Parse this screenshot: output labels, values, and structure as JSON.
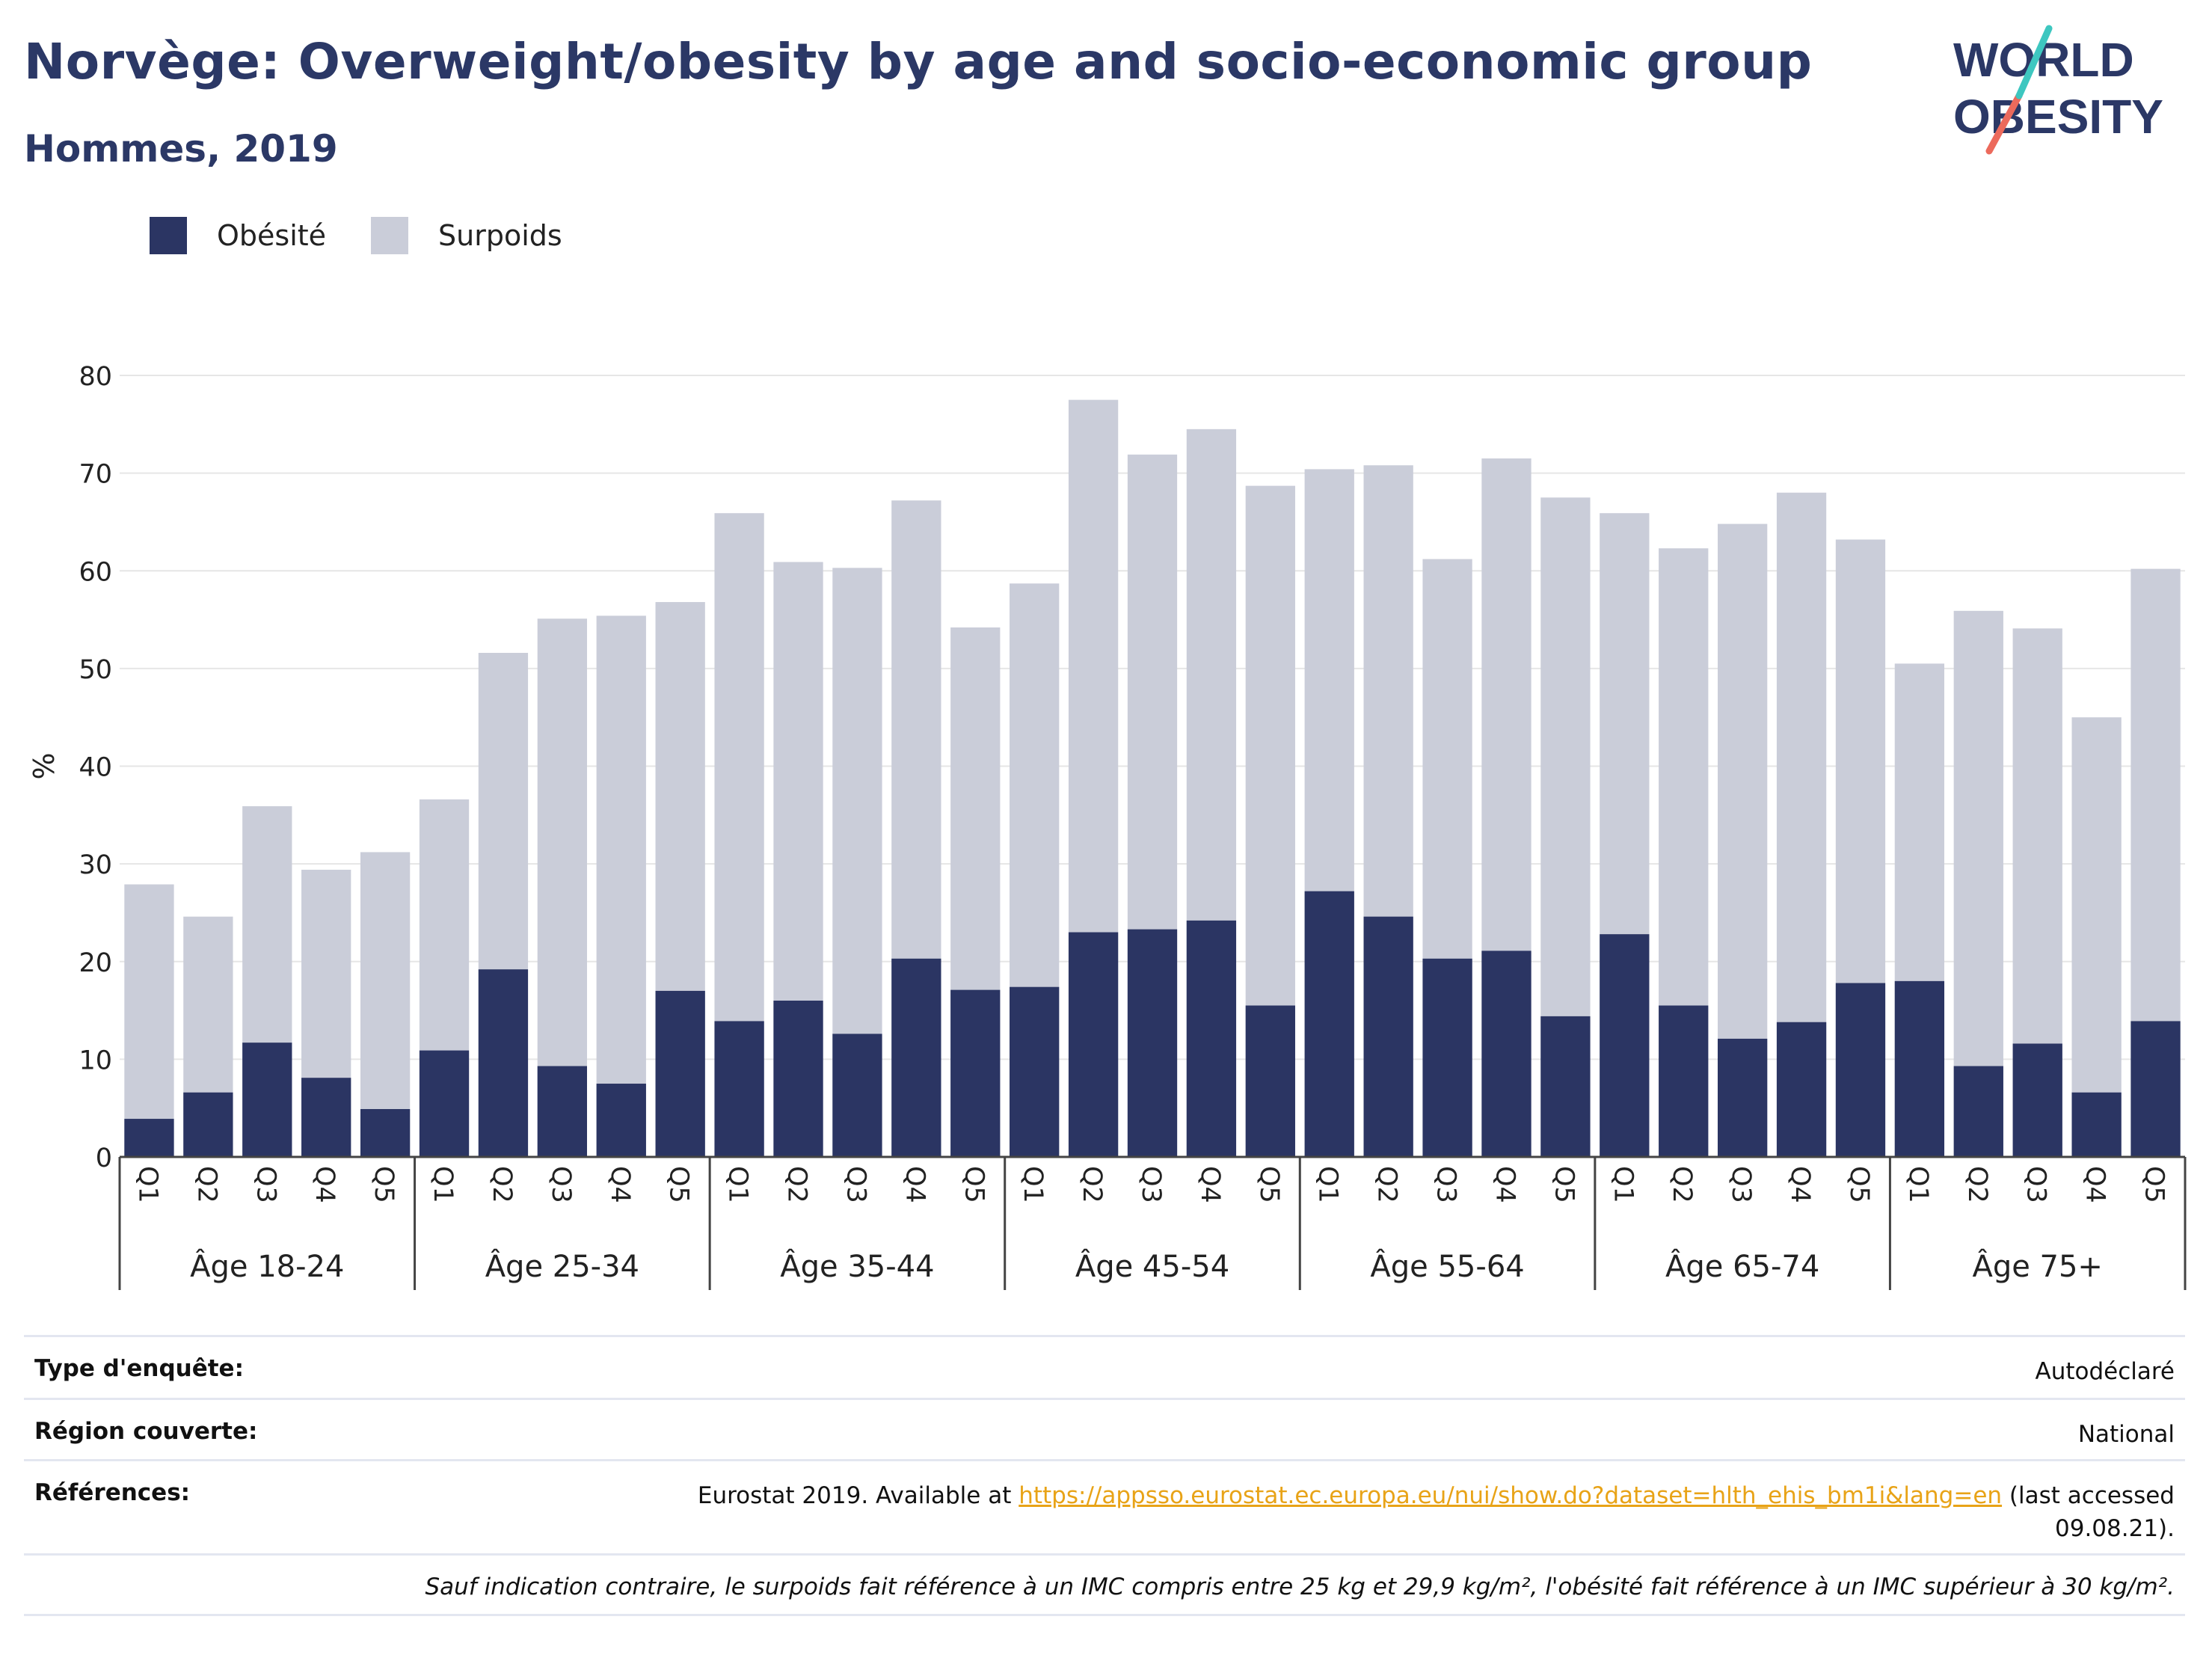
{
  "header": {
    "title": "Norvège: Overweight/obesity by age and socio-economic group",
    "subtitle": "Hommes, 2019"
  },
  "logo": {
    "line1": "WORLD",
    "line2": "OBESITY"
  },
  "colors": {
    "obesity": "#2b3563",
    "overweight": "#cacdd9",
    "accent_teal": "#3ec7c0",
    "accent_coral": "#ec6a5c"
  },
  "legend": [
    {
      "label": "Obésité",
      "color": "#2b3563"
    },
    {
      "label": "Surpoids",
      "color": "#cacdd9"
    }
  ],
  "chart_data": {
    "type": "bar",
    "stacked": true,
    "ylabel": "%",
    "ylim": [
      0,
      80
    ],
    "yticks": [
      0,
      10,
      20,
      30,
      40,
      50,
      60,
      70,
      80
    ],
    "grid": true,
    "legend_position": "top-left",
    "groups": [
      {
        "label": "Âge 18-24",
        "categories": [
          "Q1",
          "Q2",
          "Q3",
          "Q4",
          "Q5"
        ],
        "obesity": [
          3.9,
          6.6,
          11.7,
          8.1,
          4.9
        ],
        "overweight_total": [
          27.9,
          24.6,
          35.9,
          29.4,
          31.2
        ]
      },
      {
        "label": "Âge 25-34",
        "categories": [
          "Q1",
          "Q2",
          "Q3",
          "Q4",
          "Q5"
        ],
        "obesity": [
          10.9,
          19.2,
          9.3,
          7.5,
          17.0
        ],
        "overweight_total": [
          36.6,
          51.6,
          55.1,
          55.4,
          56.8
        ]
      },
      {
        "label": "Âge 35-44",
        "categories": [
          "Q1",
          "Q2",
          "Q3",
          "Q4",
          "Q5"
        ],
        "obesity": [
          13.9,
          16.0,
          12.6,
          20.3,
          17.1
        ],
        "overweight_total": [
          65.9,
          60.9,
          60.3,
          67.2,
          54.2
        ]
      },
      {
        "label": "Âge 45-54",
        "categories": [
          "Q1",
          "Q2",
          "Q3",
          "Q4",
          "Q5"
        ],
        "obesity": [
          17.4,
          23.0,
          23.3,
          24.2,
          15.5
        ],
        "overweight_total": [
          58.7,
          77.5,
          71.9,
          74.5,
          68.7
        ]
      },
      {
        "label": "Âge 55-64",
        "categories": [
          "Q1",
          "Q2",
          "Q3",
          "Q4",
          "Q5"
        ],
        "obesity": [
          27.2,
          24.6,
          20.3,
          21.1,
          14.4
        ],
        "overweight_total": [
          70.4,
          70.8,
          61.2,
          71.5,
          67.5
        ]
      },
      {
        "label": "Âge 65-74",
        "categories": [
          "Q1",
          "Q2",
          "Q3",
          "Q4",
          "Q5"
        ],
        "obesity": [
          22.8,
          15.5,
          12.1,
          13.8,
          17.8
        ],
        "overweight_total": [
          65.9,
          62.3,
          64.8,
          68.0,
          63.2
        ]
      },
      {
        "label": "Âge 75+",
        "categories": [
          "Q1",
          "Q2",
          "Q3",
          "Q4",
          "Q5"
        ],
        "obesity": [
          18.0,
          9.3,
          11.6,
          6.6,
          13.9
        ],
        "overweight_total": [
          50.5,
          55.9,
          54.1,
          45.0,
          60.2
        ]
      }
    ]
  },
  "meta": {
    "survey_type_label": "Type d'enquête:",
    "survey_type_value": "Autodéclaré",
    "region_label": "Région couverte:",
    "region_value": "National",
    "references_label": "Références:",
    "references_prefix": "Eurostat 2019. Available at ",
    "references_link": "https://appsso.eurostat.ec.europa.eu/nui/show.do?dataset=hlth_ehis_bm1i&lang=en",
    "references_suffix": " (last accessed",
    "references_date": "09.08.21).",
    "note": "Sauf indication contraire, le surpoids fait référence à un IMC compris entre 25 kg et 29,9 kg/m², l'obésité fait référence à un IMC supérieur à 30 kg/m²."
  }
}
